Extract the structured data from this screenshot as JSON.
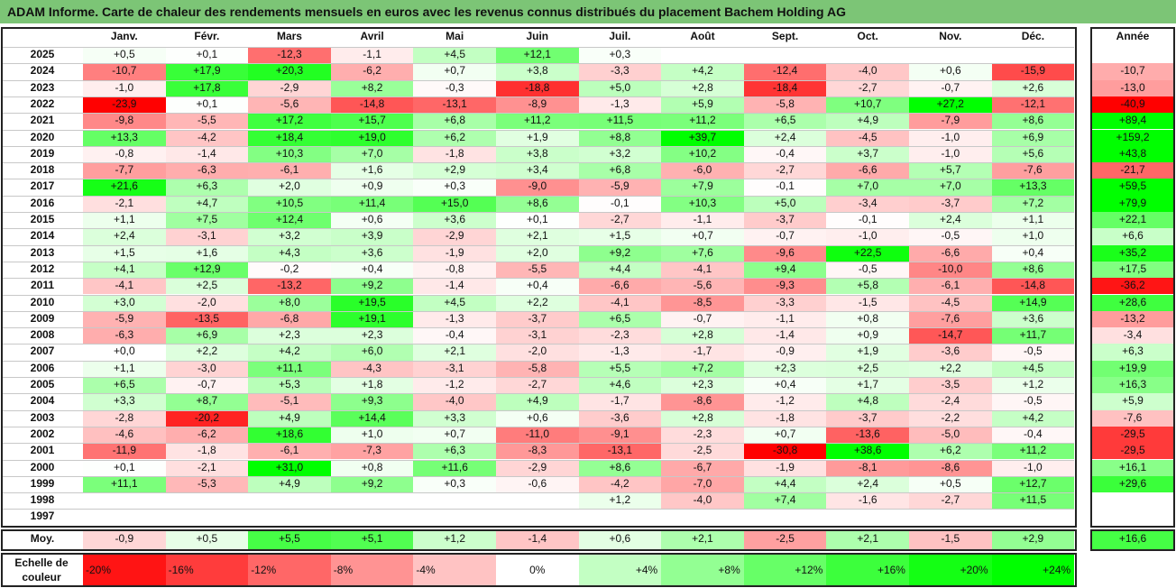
{
  "title": "ADAM Informe. Carte de chaleur des rendements mensuels en euros avec les revenus connus distribués du placement Bachem Holding AG",
  "chart_data": {
    "type": "heatmap",
    "months": [
      "Janv.",
      "Févr.",
      "Mars",
      "Avril",
      "Mai",
      "Juin",
      "Juil.",
      "Août",
      "Sept.",
      "Oct.",
      "Nov.",
      "Déc."
    ],
    "year_header": "Année",
    "rows": [
      {
        "year": "2025",
        "values": [
          "+0,5",
          "+0,1",
          "-12,3",
          "-1,1",
          "+4,5",
          "+12,1",
          "+0,3",
          "",
          "",
          "",
          "",
          ""
        ],
        "annual": ""
      },
      {
        "year": "2024",
        "values": [
          "-10,7",
          "+17,9",
          "+20,3",
          "-6,2",
          "+0,7",
          "+3,8",
          "-3,3",
          "+4,2",
          "-12,4",
          "-4,0",
          "+0,6",
          "-15,9"
        ],
        "annual": "-10,7"
      },
      {
        "year": "2023",
        "values": [
          "-1,0",
          "+17,8",
          "-2,9",
          "+8,2",
          "-0,3",
          "-18,8",
          "+5,0",
          "+2,8",
          "-18,4",
          "-2,7",
          "-0,7",
          "+2,6"
        ],
        "annual": "-13,0"
      },
      {
        "year": "2022",
        "values": [
          "-23,9",
          "+0,1",
          "-5,6",
          "-14,8",
          "-13,1",
          "-8,9",
          "-1,3",
          "+5,9",
          "-5,8",
          "+10,7",
          "+27,2",
          "-12,1"
        ],
        "annual": "-40,9"
      },
      {
        "year": "2021",
        "values": [
          "-9,8",
          "-5,5",
          "+17,2",
          "+15,7",
          "+6,8",
          "+11,2",
          "+11,5",
          "+11,2",
          "+6,5",
          "+4,9",
          "-7,9",
          "+8,6"
        ],
        "annual": "+89,4"
      },
      {
        "year": "2020",
        "values": [
          "+13,3",
          "-4,2",
          "+18,4",
          "+19,0",
          "+6,2",
          "+1,9",
          "+8,8",
          "+39,7",
          "+2,4",
          "-4,5",
          "-1,0",
          "+6,9"
        ],
        "annual": "+159,2"
      },
      {
        "year": "2019",
        "values": [
          "-0,8",
          "-1,4",
          "+10,3",
          "+7,0",
          "-1,8",
          "+3,8",
          "+3,2",
          "+10,2",
          "-0,4",
          "+3,7",
          "-1,0",
          "+5,6"
        ],
        "annual": "+43,8"
      },
      {
        "year": "2018",
        "values": [
          "-7,7",
          "-6,3",
          "-6,1",
          "+1,6",
          "+2,9",
          "+3,4",
          "+6,8",
          "-6,0",
          "-2,7",
          "-6,6",
          "+5,7",
          "-7,6"
        ],
        "annual": "-21,7"
      },
      {
        "year": "2017",
        "values": [
          "+21,6",
          "+6,3",
          "+2,0",
          "+0,9",
          "+0,3",
          "-9,0",
          "-5,9",
          "+7,9",
          "-0,1",
          "+7,0",
          "+7,0",
          "+13,3"
        ],
        "annual": "+59,5"
      },
      {
        "year": "2016",
        "values": [
          "-2,1",
          "+4,7",
          "+10,5",
          "+11,4",
          "+15,0",
          "+8,6",
          "-0,1",
          "+10,3",
          "+5,0",
          "-3,4",
          "-3,7",
          "+7,2"
        ],
        "annual": "+79,9"
      },
      {
        "year": "2015",
        "values": [
          "+1,1",
          "+7,5",
          "+12,4",
          "+0,6",
          "+3,6",
          "+0,1",
          "-2,7",
          "-1,1",
          "-3,7",
          "-0,1",
          "+2,4",
          "+1,1"
        ],
        "annual": "+22,1"
      },
      {
        "year": "2014",
        "values": [
          "+2,4",
          "-3,1",
          "+3,2",
          "+3,9",
          "-2,9",
          "+2,1",
          "+1,5",
          "+0,7",
          "-0,7",
          "-1,0",
          "-0,5",
          "+1,0"
        ],
        "annual": "+6,6"
      },
      {
        "year": "2013",
        "values": [
          "+1,5",
          "+1,6",
          "+4,3",
          "+3,6",
          "-1,9",
          "+2,0",
          "+9,2",
          "+7,6",
          "-9,6",
          "+22,5",
          "-6,6",
          "+0,4"
        ],
        "annual": "+35,2"
      },
      {
        "year": "2012",
        "values": [
          "+4,1",
          "+12,9",
          "-0,2",
          "+0,4",
          "-0,8",
          "-5,5",
          "+4,4",
          "-4,1",
          "+9,4",
          "-0,5",
          "-10,0",
          "+8,6"
        ],
        "annual": "+17,5"
      },
      {
        "year": "2011",
        "values": [
          "-4,1",
          "+2,5",
          "-13,2",
          "+9,2",
          "-1,4",
          "+0,4",
          "-6,6",
          "-5,6",
          "-9,3",
          "+5,8",
          "-6,1",
          "-14,8"
        ],
        "annual": "-36,2"
      },
      {
        "year": "2010",
        "values": [
          "+3,0",
          "-2,0",
          "+8,0",
          "+19,5",
          "+4,5",
          "+2,2",
          "-4,1",
          "-8,5",
          "-3,3",
          "-1,5",
          "-4,5",
          "+14,9"
        ],
        "annual": "+28,6"
      },
      {
        "year": "2009",
        "values": [
          "-5,9",
          "-13,5",
          "-6,8",
          "+19,1",
          "-1,3",
          "-3,7",
          "+6,5",
          "-0,7",
          "-1,1",
          "+0,8",
          "-7,6",
          "+3,6"
        ],
        "annual": "-13,2"
      },
      {
        "year": "2008",
        "values": [
          "-6,3",
          "+6,9",
          "+2,3",
          "+2,3",
          "-0,4",
          "-3,1",
          "-2,3",
          "+2,8",
          "-1,4",
          "+0,9",
          "-14,7",
          "+11,7"
        ],
        "annual": "-3,4"
      },
      {
        "year": "2007",
        "values": [
          "+0,0",
          "+2,2",
          "+4,2",
          "+6,0",
          "+2,1",
          "-2,0",
          "-1,3",
          "-1,7",
          "-0,9",
          "+1,9",
          "-3,6",
          "-0,5"
        ],
        "annual": "+6,3"
      },
      {
        "year": "2006",
        "values": [
          "+1,1",
          "-3,0",
          "+11,1",
          "-4,3",
          "-3,1",
          "-5,8",
          "+5,5",
          "+7,2",
          "+2,3",
          "+2,5",
          "+2,2",
          "+4,5"
        ],
        "annual": "+19,9"
      },
      {
        "year": "2005",
        "values": [
          "+6,5",
          "-0,7",
          "+5,3",
          "+1,8",
          "-1,2",
          "-2,7",
          "+4,6",
          "+2,3",
          "+0,4",
          "+1,7",
          "-3,5",
          "+1,2"
        ],
        "annual": "+16,3"
      },
      {
        "year": "2004",
        "values": [
          "+3,3",
          "+8,7",
          "-5,1",
          "+9,3",
          "-4,0",
          "+4,9",
          "-1,7",
          "-8,6",
          "-1,2",
          "+4,8",
          "-2,4",
          "-0,5"
        ],
        "annual": "+5,9"
      },
      {
        "year": "2003",
        "values": [
          "-2,8",
          "-20,2",
          "+4,9",
          "+14,4",
          "+3,3",
          "+0,6",
          "-3,6",
          "+2,8",
          "-1,8",
          "-3,7",
          "-2,2",
          "+4,2"
        ],
        "annual": "-7,6"
      },
      {
        "year": "2002",
        "values": [
          "-4,6",
          "-6,2",
          "+18,6",
          "+1,0",
          "+0,7",
          "-11,0",
          "-9,1",
          "-2,3",
          "+0,7",
          "-13,6",
          "-5,0",
          "-0,4"
        ],
        "annual": "-29,5"
      },
      {
        "year": "2001",
        "values": [
          "-11,9",
          "-1,8",
          "-6,1",
          "-7,3",
          "+6,3",
          "-8,3",
          "-13,1",
          "-2,5",
          "-30,8",
          "+38,6",
          "+6,2",
          "+11,2"
        ],
        "annual": "-29,5"
      },
      {
        "year": "2000",
        "values": [
          "+0,1",
          "-2,1",
          "+31,0",
          "+0,8",
          "+11,6",
          "-2,9",
          "+8,6",
          "-6,7",
          "-1,9",
          "-8,1",
          "-8,6",
          "-1,0"
        ],
        "annual": "+16,1"
      },
      {
        "year": "1999",
        "values": [
          "+11,1",
          "-5,3",
          "+4,9",
          "+9,2",
          "+0,3",
          "-0,6",
          "-4,2",
          "-7,0",
          "+4,4",
          "+2,4",
          "+0,5",
          "+12,7"
        ],
        "annual": "+29,6"
      },
      {
        "year": "1998",
        "values": [
          "",
          "",
          "",
          "",
          "",
          "",
          "+1,2",
          "-4,0",
          "+7,4",
          "-1,6",
          "-2,7",
          "+11,5"
        ],
        "annual": ""
      },
      {
        "year": "1997",
        "values": [
          "",
          "",
          "",
          "",
          "",
          "",
          "",
          "",
          "",
          "",
          "",
          ""
        ],
        "annual": ""
      }
    ],
    "average": {
      "label": "Moy.",
      "values": [
        "-0,9",
        "+0,5",
        "+5,5",
        "+5,1",
        "+1,2",
        "-1,4",
        "+0,6",
        "+2,1",
        "-2,5",
        "+2,1",
        "-1,5",
        "+2,9"
      ],
      "annual": "+16,6"
    },
    "scale": {
      "label_line1": "Echelle de",
      "label_line2": "couleur",
      "steps": [
        "-20%",
        "-16%",
        "-12%",
        "-8%",
        "-4%",
        "0%",
        "+4%",
        "+8%",
        "+12%",
        "+16%",
        "+20%",
        "+24%"
      ]
    },
    "colors": {
      "negative": "#ff0000",
      "neutral": "#ffffff",
      "positive": "#00ff00",
      "title_bar": "#7cc576"
    }
  }
}
